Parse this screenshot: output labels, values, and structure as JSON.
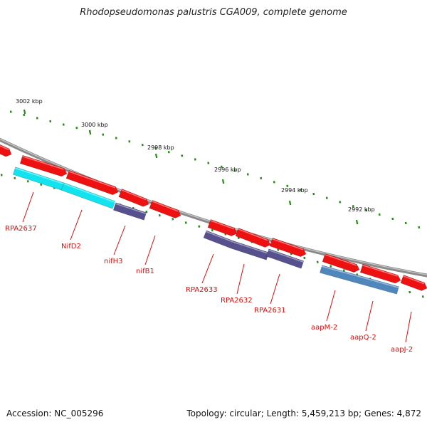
{
  "title": "Rhodopseudomonas palustris CGA009, complete genome",
  "footer": {
    "accession": "Accession: NC_005296",
    "summary": "Topology: circular; Length: 5,459,213 bp; Genes: 4,872"
  },
  "colors": {
    "backbone": "#8a8a8a",
    "forward_gene": "#ee1111",
    "reverse_cyan": "#11e4ef",
    "reverse_purple": "#56508f",
    "reverse_steel": "#4f87bc",
    "label": "#d11111",
    "tick": "#2a8a1a"
  },
  "ticks": [
    {
      "label": "3002 kbp"
    },
    {
      "label": "3000 kbp"
    },
    {
      "label": "2998 kbp"
    },
    {
      "label": "2996 kbp"
    },
    {
      "label": "2994 kbp"
    },
    {
      "label": "2992 kbp"
    }
  ],
  "genes": [
    {
      "name": "RPA2637",
      "strand": "reverse",
      "color": "reverse_cyan"
    },
    {
      "name": "NifD2",
      "strand": "reverse",
      "color": "reverse_cyan"
    },
    {
      "name": "nifH3",
      "strand": "reverse",
      "color": "reverse_purple"
    },
    {
      "name": "nifB1",
      "strand": "forward",
      "color": "forward_gene"
    },
    {
      "name": "RPA2633",
      "strand": "reverse",
      "color": "reverse_purple"
    },
    {
      "name": "RPA2632",
      "strand": "reverse",
      "color": "reverse_purple"
    },
    {
      "name": "RPA2631",
      "strand": "reverse",
      "color": "reverse_purple"
    },
    {
      "name": "aapM-2",
      "strand": "reverse",
      "color": "reverse_steel"
    },
    {
      "name": "aapQ-2",
      "strand": "reverse",
      "color": "reverse_steel"
    },
    {
      "name": "aapJ-2",
      "strand": "forward",
      "color": "forward_gene"
    }
  ]
}
